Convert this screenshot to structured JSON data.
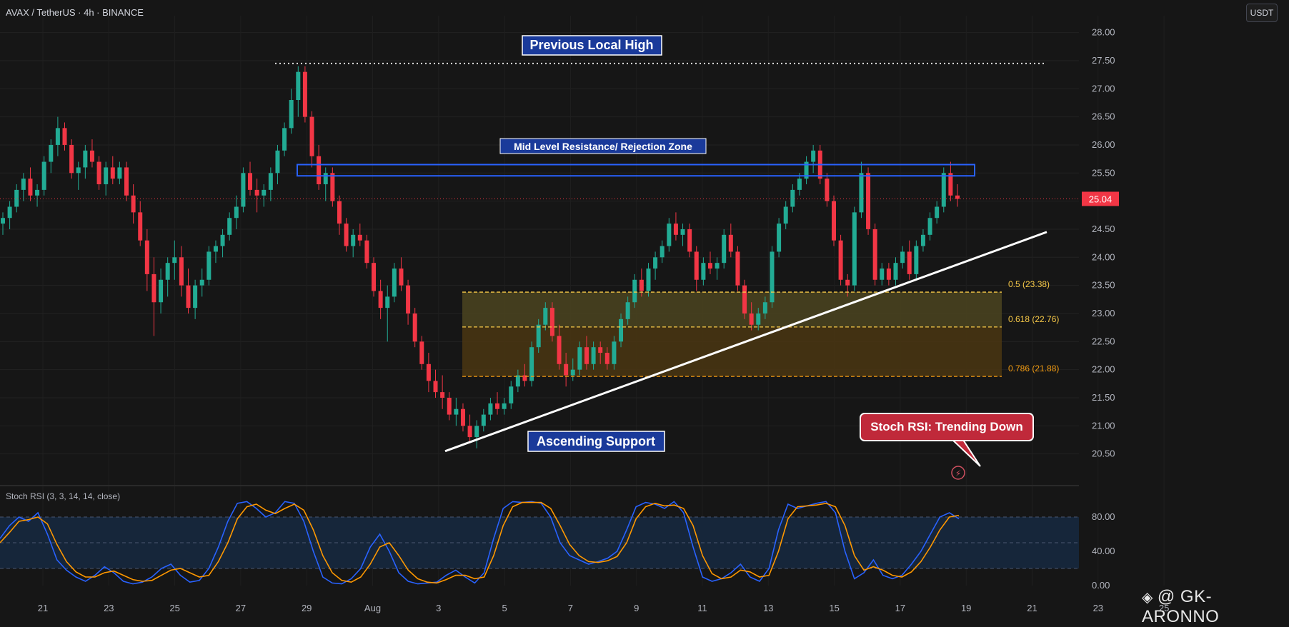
{
  "header": {
    "symbol": "AVAX / TetherUS · 4h · BINANCE",
    "currency": "USDT"
  },
  "watermark": "@ GK-ARONNO",
  "colors": {
    "up": "#22ab94",
    "down": "#f23645",
    "background": "#161616",
    "fib_zone": "#4a3f14",
    "resistance": "#2962ff",
    "label_bg": "#1a3a9a",
    "bubble_bg": "#c0293a",
    "stoch_k": "#2962ff",
    "stoch_d": "#ff9800"
  },
  "chart_data": [
    {
      "type": "candlestick",
      "title": "AVAX / TetherUS · 4h · BINANCE",
      "ylim": [
        20.0,
        28.3
      ],
      "y_ticks": [
        "28.00",
        "27.50",
        "27.00",
        "26.50",
        "26.00",
        "25.50",
        "25.00",
        "24.50",
        "24.00",
        "23.50",
        "23.00",
        "22.50",
        "22.00",
        "21.50",
        "21.00",
        "20.50"
      ],
      "x_ticks": [
        "21",
        "23",
        "25",
        "27",
        "29",
        "Aug",
        "3",
        "5",
        "7",
        "9",
        "11",
        "13",
        "15",
        "17",
        "19",
        "21",
        "23",
        "25"
      ],
      "last_price": "25.04",
      "candles_ohlc": [
        [
          24.6,
          24.8,
          24.4,
          24.7
        ],
        [
          24.7,
          25.0,
          24.5,
          24.9
        ],
        [
          24.9,
          25.3,
          24.8,
          25.2
        ],
        [
          25.2,
          25.5,
          25.0,
          25.4
        ],
        [
          25.4,
          25.6,
          25.0,
          25.1
        ],
        [
          25.1,
          25.3,
          24.9,
          25.2
        ],
        [
          25.2,
          25.8,
          25.1,
          25.7
        ],
        [
          25.7,
          26.1,
          25.5,
          26.0
        ],
        [
          26.0,
          26.5,
          25.8,
          26.3
        ],
        [
          26.3,
          26.4,
          25.9,
          26.0
        ],
        [
          26.0,
          26.1,
          25.4,
          25.5
        ],
        [
          25.5,
          25.7,
          25.2,
          25.6
        ],
        [
          25.6,
          26.0,
          25.4,
          25.9
        ],
        [
          25.9,
          26.1,
          25.6,
          25.7
        ],
        [
          25.7,
          25.8,
          25.2,
          25.3
        ],
        [
          25.3,
          25.7,
          25.1,
          25.6
        ],
        [
          25.6,
          25.8,
          25.3,
          25.4
        ],
        [
          25.4,
          25.7,
          25.3,
          25.6
        ],
        [
          25.6,
          25.7,
          25.0,
          25.1
        ],
        [
          25.1,
          25.3,
          24.6,
          24.8
        ],
        [
          24.8,
          25.0,
          24.2,
          24.3
        ],
        [
          24.3,
          24.5,
          23.4,
          23.7
        ],
        [
          23.7,
          24.0,
          22.6,
          23.2
        ],
        [
          23.2,
          23.8,
          23.0,
          23.6
        ],
        [
          23.6,
          24.0,
          23.3,
          23.9
        ],
        [
          23.9,
          24.3,
          23.6,
          24.0
        ],
        [
          24.0,
          24.2,
          23.3,
          23.5
        ],
        [
          23.5,
          23.8,
          23.0,
          23.1
        ],
        [
          23.1,
          23.6,
          22.9,
          23.5
        ],
        [
          23.5,
          23.8,
          23.3,
          23.6
        ],
        [
          23.6,
          24.2,
          23.5,
          24.1
        ],
        [
          24.1,
          24.3,
          23.9,
          24.2
        ],
        [
          24.2,
          24.5,
          24.0,
          24.4
        ],
        [
          24.4,
          24.8,
          24.3,
          24.7
        ],
        [
          24.7,
          25.1,
          24.5,
          24.9
        ],
        [
          24.9,
          25.6,
          24.8,
          25.5
        ],
        [
          25.5,
          25.7,
          25.1,
          25.2
        ],
        [
          25.2,
          25.4,
          24.8,
          25.1
        ],
        [
          25.1,
          25.3,
          24.9,
          25.2
        ],
        [
          25.2,
          25.6,
          25.0,
          25.5
        ],
        [
          25.5,
          26.0,
          25.3,
          25.9
        ],
        [
          25.9,
          26.4,
          25.8,
          26.3
        ],
        [
          26.3,
          27.0,
          26.2,
          26.8
        ],
        [
          26.8,
          27.4,
          26.5,
          27.3
        ],
        [
          27.3,
          27.4,
          26.4,
          26.5
        ],
        [
          26.5,
          26.6,
          25.6,
          25.8
        ],
        [
          25.8,
          26.0,
          25.2,
          25.3
        ],
        [
          25.3,
          25.6,
          25.0,
          25.5
        ],
        [
          25.5,
          25.6,
          24.9,
          25.0
        ],
        [
          25.0,
          25.1,
          24.4,
          24.6
        ],
        [
          24.6,
          24.7,
          24.1,
          24.2
        ],
        [
          24.2,
          24.5,
          24.0,
          24.4
        ],
        [
          24.4,
          24.6,
          24.2,
          24.3
        ],
        [
          24.3,
          24.4,
          23.8,
          23.9
        ],
        [
          23.9,
          24.0,
          23.3,
          23.4
        ],
        [
          23.4,
          23.6,
          22.9,
          23.1
        ],
        [
          23.1,
          23.5,
          22.5,
          23.3
        ],
        [
          23.3,
          23.9,
          23.2,
          23.8
        ],
        [
          23.8,
          24.0,
          23.4,
          23.5
        ],
        [
          23.5,
          23.6,
          22.8,
          23.0
        ],
        [
          23.0,
          23.1,
          22.4,
          22.5
        ],
        [
          22.5,
          22.6,
          22.0,
          22.1
        ],
        [
          22.1,
          22.3,
          21.6,
          21.8
        ],
        [
          21.8,
          22.0,
          21.5,
          21.6
        ],
        [
          21.6,
          21.9,
          21.3,
          21.5
        ],
        [
          21.5,
          21.6,
          21.1,
          21.2
        ],
        [
          21.2,
          21.5,
          21.0,
          21.3
        ],
        [
          21.3,
          21.4,
          20.9,
          21.0
        ],
        [
          21.0,
          21.2,
          20.7,
          20.8
        ],
        [
          20.8,
          21.1,
          20.6,
          21.0
        ],
        [
          21.0,
          21.3,
          20.9,
          21.2
        ],
        [
          21.2,
          21.5,
          21.1,
          21.4
        ],
        [
          21.4,
          21.6,
          21.2,
          21.3
        ],
        [
          21.3,
          21.5,
          21.2,
          21.4
        ],
        [
          21.4,
          21.8,
          21.3,
          21.7
        ],
        [
          21.7,
          22.0,
          21.6,
          21.9
        ],
        [
          21.9,
          22.1,
          21.7,
          21.8
        ],
        [
          21.8,
          22.5,
          21.7,
          22.4
        ],
        [
          22.4,
          22.9,
          22.3,
          22.8
        ],
        [
          22.8,
          23.2,
          22.7,
          23.1
        ],
        [
          23.1,
          23.2,
          22.5,
          22.6
        ],
        [
          22.6,
          22.8,
          22.0,
          22.1
        ],
        [
          22.1,
          22.3,
          21.7,
          21.9
        ],
        [
          21.9,
          22.2,
          21.8,
          22.0
        ],
        [
          22.0,
          22.5,
          21.9,
          22.4
        ],
        [
          22.4,
          22.6,
          22.0,
          22.1
        ],
        [
          22.1,
          22.5,
          22.0,
          22.4
        ],
        [
          22.4,
          22.5,
          22.1,
          22.3
        ],
        [
          22.3,
          22.4,
          22.0,
          22.1
        ],
        [
          22.1,
          22.6,
          22.0,
          22.5
        ],
        [
          22.5,
          23.0,
          22.4,
          22.9
        ],
        [
          22.9,
          23.3,
          22.8,
          23.2
        ],
        [
          23.2,
          23.7,
          23.1,
          23.6
        ],
        [
          23.6,
          23.8,
          23.3,
          23.4
        ],
        [
          23.4,
          23.9,
          23.3,
          23.8
        ],
        [
          23.8,
          24.1,
          23.6,
          24.0
        ],
        [
          24.0,
          24.3,
          23.9,
          24.2
        ],
        [
          24.2,
          24.7,
          24.1,
          24.6
        ],
        [
          24.6,
          24.8,
          24.3,
          24.4
        ],
        [
          24.4,
          24.6,
          24.2,
          24.5
        ],
        [
          24.5,
          24.6,
          24.0,
          24.1
        ],
        [
          24.1,
          24.2,
          23.4,
          23.6
        ],
        [
          23.6,
          24.0,
          23.5,
          23.9
        ],
        [
          23.9,
          24.1,
          23.7,
          23.8
        ],
        [
          23.8,
          24.0,
          23.6,
          23.9
        ],
        [
          23.9,
          24.5,
          23.8,
          24.4
        ],
        [
          24.4,
          24.6,
          24.0,
          24.1
        ],
        [
          24.1,
          24.2,
          23.4,
          23.5
        ],
        [
          23.5,
          23.6,
          22.9,
          23.0
        ],
        [
          23.0,
          23.2,
          22.7,
          22.8
        ],
        [
          22.8,
          23.1,
          22.7,
          23.0
        ],
        [
          23.0,
          23.3,
          22.9,
          23.2
        ],
        [
          23.2,
          24.2,
          23.1,
          24.1
        ],
        [
          24.1,
          24.7,
          24.0,
          24.6
        ],
        [
          24.6,
          25.0,
          24.5,
          24.9
        ],
        [
          24.9,
          25.3,
          24.8,
          25.2
        ],
        [
          25.2,
          25.5,
          25.1,
          25.4
        ],
        [
          25.4,
          25.8,
          25.3,
          25.7
        ],
        [
          25.7,
          26.0,
          25.5,
          25.9
        ],
        [
          25.9,
          26.0,
          25.3,
          25.4
        ],
        [
          25.4,
          25.5,
          24.9,
          25.0
        ],
        [
          25.0,
          25.1,
          24.2,
          24.3
        ],
        [
          24.3,
          24.4,
          23.5,
          23.6
        ],
        [
          23.6,
          23.7,
          23.3,
          23.5
        ],
        [
          23.5,
          24.9,
          23.4,
          24.8
        ],
        [
          24.8,
          25.7,
          24.7,
          25.5
        ],
        [
          25.5,
          25.6,
          24.4,
          24.5
        ],
        [
          24.5,
          24.6,
          23.5,
          23.6
        ],
        [
          23.6,
          23.9,
          23.5,
          23.8
        ],
        [
          23.8,
          23.9,
          23.5,
          23.6
        ],
        [
          23.6,
          24.0,
          23.5,
          23.9
        ],
        [
          23.9,
          24.2,
          23.8,
          24.1
        ],
        [
          24.1,
          24.3,
          23.6,
          23.7
        ],
        [
          23.7,
          24.3,
          23.6,
          24.2
        ],
        [
          24.2,
          24.5,
          24.1,
          24.4
        ],
        [
          24.4,
          24.8,
          24.3,
          24.7
        ],
        [
          24.7,
          25.0,
          24.6,
          24.9
        ],
        [
          24.9,
          25.6,
          24.8,
          25.5
        ],
        [
          25.5,
          25.7,
          25.0,
          25.1
        ],
        [
          25.1,
          25.3,
          24.9,
          25.04
        ]
      ],
      "annotations": {
        "previous_local_high": {
          "label": "Previous Local High",
          "price": 27.45
        },
        "resistance_zone": {
          "label": "Mid Level Resistance/ Rejection Zone",
          "top": 25.65,
          "bottom": 25.45
        },
        "ascending_support": {
          "label": "Ascending Support",
          "from": [
            68,
            20.55
          ],
          "to": [
            158,
            24.45
          ]
        },
        "fib_levels": [
          {
            "label": "0.5 (23.38)",
            "price": 23.38,
            "color": "#f7c948"
          },
          {
            "label": "0.618 (22.76)",
            "price": 22.76,
            "color": "#f7c948"
          },
          {
            "label": "0.786 (21.88)",
            "price": 21.88,
            "color": "#f39c12"
          }
        ],
        "stoch_callout": "Stoch RSI: Trending Down"
      }
    },
    {
      "type": "line",
      "title": "Stoch RSI (3, 3, 14, 14, close)",
      "ylim": [
        0,
        100
      ],
      "y_ticks": [
        "80.00",
        "40.00",
        "0.00"
      ],
      "band": [
        20,
        80
      ],
      "series": [
        {
          "name": "K",
          "color": "#2962ff",
          "values": [
            55,
            70,
            80,
            75,
            85,
            60,
            30,
            18,
            10,
            5,
            12,
            22,
            15,
            5,
            2,
            4,
            10,
            20,
            25,
            12,
            4,
            6,
            20,
            45,
            75,
            96,
            98,
            90,
            80,
            85,
            98,
            96,
            75,
            40,
            10,
            3,
            2,
            8,
            20,
            45,
            60,
            40,
            15,
            5,
            2,
            3,
            4,
            12,
            18,
            10,
            3,
            15,
            55,
            90,
            98,
            97,
            98,
            96,
            80,
            50,
            35,
            30,
            25,
            28,
            32,
            40,
            65,
            92,
            97,
            95,
            90,
            98,
            85,
            45,
            10,
            5,
            8,
            15,
            25,
            10,
            5,
            20,
            65,
            95,
            90,
            93,
            96,
            98,
            85,
            40,
            8,
            15,
            30,
            12,
            8,
            12,
            25,
            40,
            60,
            80,
            85,
            78
          ]
        },
        {
          "name": "D",
          "color": "#ff9800",
          "values": [
            50,
            62,
            75,
            77,
            80,
            72,
            48,
            28,
            16,
            10,
            10,
            15,
            17,
            12,
            7,
            5,
            6,
            12,
            18,
            20,
            15,
            10,
            12,
            28,
            50,
            78,
            92,
            95,
            88,
            84,
            90,
            95,
            88,
            65,
            35,
            15,
            6,
            4,
            10,
            25,
            45,
            50,
            35,
            18,
            8,
            4,
            3,
            7,
            12,
            12,
            8,
            10,
            35,
            70,
            92,
            97,
            97,
            97,
            90,
            70,
            48,
            35,
            28,
            27,
            29,
            34,
            50,
            78,
            92,
            96,
            93,
            94,
            90,
            70,
            35,
            14,
            8,
            10,
            18,
            16,
            10,
            12,
            40,
            78,
            92,
            93,
            94,
            96,
            92,
            70,
            35,
            18,
            22,
            18,
            12,
            10,
            16,
            28,
            45,
            65,
            80,
            82
          ]
        }
      ]
    }
  ]
}
